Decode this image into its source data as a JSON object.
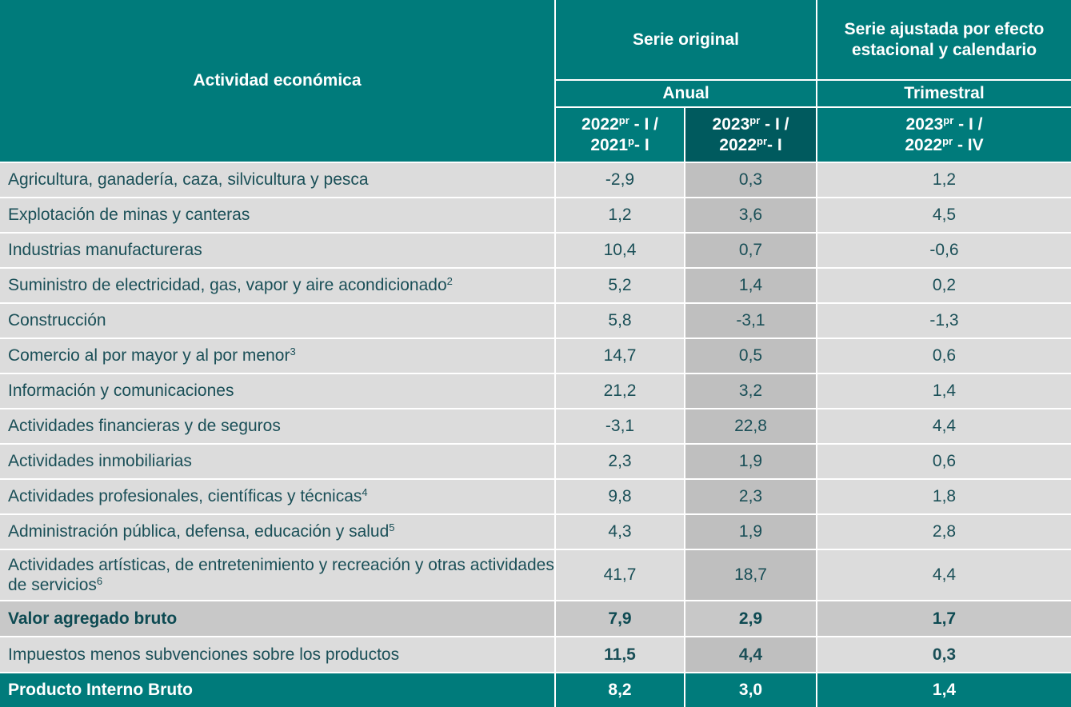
{
  "header": {
    "activity": "Actividad económica",
    "original": "Serie original",
    "adjusted": "Serie ajustada por efecto estacional y calendario",
    "annual": "Anual",
    "quarterly": "Trimestral",
    "columns": [
      {
        "line1": [
          "2022",
          "pr",
          " - I /"
        ],
        "line2": [
          "2021",
          "p",
          "- I"
        ]
      },
      {
        "line1": [
          "2023",
          "pr",
          " - I /"
        ],
        "line2": [
          "2022",
          "pr",
          "- I"
        ]
      },
      {
        "line1": [
          "2023",
          "pr",
          " - I /"
        ],
        "line2": [
          "2022",
          "pr",
          " - IV"
        ]
      }
    ]
  },
  "table": {
    "rows": [
      {
        "label": "Agricultura, ganadería, caza, silvicultura y pesca",
        "values": [
          "-2,9",
          "0,3",
          "1,2"
        ]
      },
      {
        "label": "Explotación de minas y canteras",
        "values": [
          "1,2",
          "3,6",
          "4,5"
        ]
      },
      {
        "label": "Industrias manufactureras",
        "values": [
          "10,4",
          "0,7",
          "-0,6"
        ]
      },
      {
        "label": "Suministro de electricidad, gas, vapor y aire acondicionado",
        "note": "2",
        "values": [
          "5,2",
          "1,4",
          "0,2"
        ]
      },
      {
        "label": "Construcción",
        "values": [
          "5,8",
          "-3,1",
          "-1,3"
        ]
      },
      {
        "label": "Comercio al por mayor y al por menor",
        "note": "3",
        "values": [
          "14,7",
          "0,5",
          "0,6"
        ]
      },
      {
        "label": "Información y comunicaciones",
        "values": [
          "21,2",
          "3,2",
          "1,4"
        ]
      },
      {
        "label": "Actividades financieras y de seguros",
        "values": [
          "-3,1",
          "22,8",
          "4,4"
        ]
      },
      {
        "label": "Actividades inmobiliarias",
        "values": [
          "2,3",
          "1,9",
          "0,6"
        ]
      },
      {
        "label": "Actividades profesionales, científicas y técnicas",
        "note": "4",
        "values": [
          "9,8",
          "2,3",
          "1,8"
        ]
      },
      {
        "label": "Administración pública, defensa, educación y salud",
        "note": "5",
        "values": [
          "4,3",
          "1,9",
          "2,8"
        ]
      },
      {
        "label": "Actividades artísticas, de entretenimiento y recreación y otras actividades de servicios",
        "note": "6",
        "values": [
          "41,7",
          "18,7",
          "4,4"
        ]
      },
      {
        "label": "Valor agregado bruto",
        "values": [
          "7,9",
          "2,9",
          "1,7"
        ]
      },
      {
        "label": "Impuestos menos subvenciones sobre los productos",
        "values": [
          "11,5",
          "4,4",
          "0,3"
        ]
      },
      {
        "label": "Producto Interno Bruto",
        "values": [
          "8,2",
          "3,0",
          "1,4"
        ]
      }
    ]
  }
}
